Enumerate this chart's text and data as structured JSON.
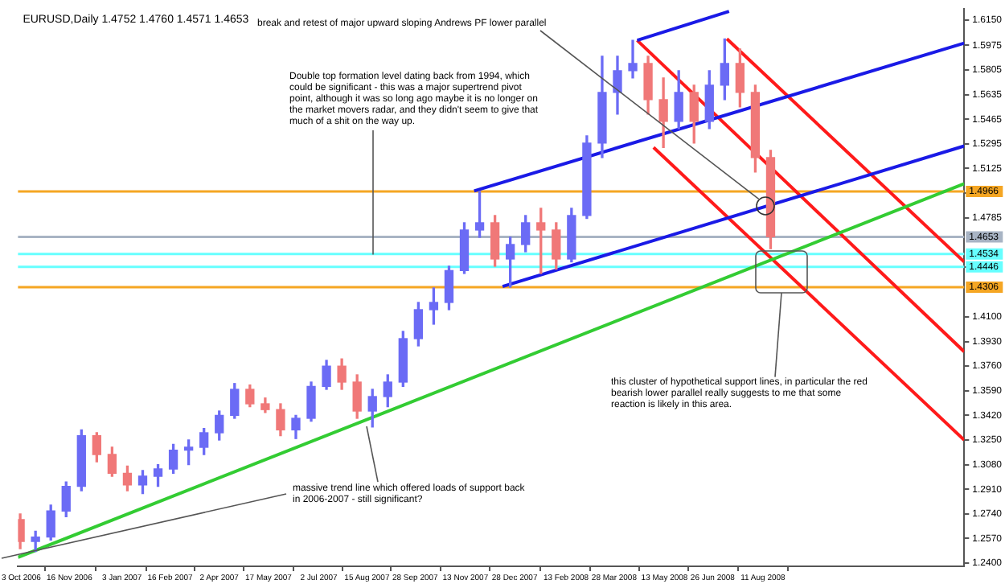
{
  "chart_data": {
    "type": "candlestick",
    "title": "EURUSD,Daily 1.4752 1.4760 1.4571 1.4653",
    "x": [
      "2006-10-02",
      "2006-10-16",
      "2006-10-30",
      "2006-11-13",
      "2006-11-27",
      "2006-12-11",
      "2006-12-25",
      "2007-01-08",
      "2007-01-22",
      "2007-02-05",
      "2007-02-19",
      "2007-03-05",
      "2007-03-19",
      "2007-04-02",
      "2007-04-16",
      "2007-04-30",
      "2007-05-14",
      "2007-05-28",
      "2007-06-11",
      "2007-06-25",
      "2007-07-09",
      "2007-07-23",
      "2007-08-06",
      "2007-08-20",
      "2007-09-03",
      "2007-09-17",
      "2007-10-01",
      "2007-10-15",
      "2007-10-29",
      "2007-11-12",
      "2007-11-26",
      "2007-12-10",
      "2007-12-24",
      "2008-01-07",
      "2008-01-21",
      "2008-02-04",
      "2008-02-18",
      "2008-03-03",
      "2008-03-17",
      "2008-03-31",
      "2008-04-14",
      "2008-04-28",
      "2008-05-12",
      "2008-05-26",
      "2008-06-09",
      "2008-06-23",
      "2008-07-07",
      "2008-07-21",
      "2008-08-04",
      "2008-08-18"
    ],
    "ohlc": [
      [
        1.27,
        1.274,
        1.25,
        1.255
      ],
      [
        1.255,
        1.262,
        1.248,
        1.258
      ],
      [
        1.258,
        1.28,
        1.256,
        1.276
      ],
      [
        1.276,
        1.296,
        1.272,
        1.293
      ],
      [
        1.293,
        1.332,
        1.29,
        1.328
      ],
      [
        1.328,
        1.33,
        1.31,
        1.315
      ],
      [
        1.315,
        1.32,
        1.3,
        1.302
      ],
      [
        1.302,
        1.307,
        1.29,
        1.294
      ],
      [
        1.294,
        1.304,
        1.288,
        1.3
      ],
      [
        1.3,
        1.308,
        1.293,
        1.305
      ],
      [
        1.305,
        1.322,
        1.302,
        1.318
      ],
      [
        1.318,
        1.325,
        1.308,
        1.32
      ],
      [
        1.32,
        1.333,
        1.315,
        1.33
      ],
      [
        1.33,
        1.345,
        1.325,
        1.342
      ],
      [
        1.342,
        1.364,
        1.34,
        1.36
      ],
      [
        1.36,
        1.363,
        1.348,
        1.35
      ],
      [
        1.35,
        1.354,
        1.344,
        1.346
      ],
      [
        1.346,
        1.35,
        1.328,
        1.332
      ],
      [
        1.332,
        1.342,
        1.326,
        1.34
      ],
      [
        1.34,
        1.365,
        1.338,
        1.362
      ],
      [
        1.362,
        1.38,
        1.36,
        1.376
      ],
      [
        1.376,
        1.381,
        1.36,
        1.365
      ],
      [
        1.365,
        1.37,
        1.34,
        1.345
      ],
      [
        1.345,
        1.36,
        1.334,
        1.355
      ],
      [
        1.355,
        1.37,
        1.348,
        1.365
      ],
      [
        1.365,
        1.4,
        1.362,
        1.395
      ],
      [
        1.395,
        1.42,
        1.39,
        1.415
      ],
      [
        1.415,
        1.43,
        1.405,
        1.42
      ],
      [
        1.42,
        1.445,
        1.415,
        1.442
      ],
      [
        1.442,
        1.475,
        1.44,
        1.47
      ],
      [
        1.47,
        1.4966,
        1.465,
        1.475
      ],
      [
        1.475,
        1.48,
        1.445,
        1.45
      ],
      [
        1.45,
        1.465,
        1.4306,
        1.46
      ],
      [
        1.46,
        1.48,
        1.455,
        1.475
      ],
      [
        1.475,
        1.485,
        1.44,
        1.47
      ],
      [
        1.47,
        1.475,
        1.443,
        1.45
      ],
      [
        1.45,
        1.485,
        1.448,
        1.48
      ],
      [
        1.48,
        1.535,
        1.478,
        1.53
      ],
      [
        1.53,
        1.59,
        1.52,
        1.565
      ],
      [
        1.565,
        1.59,
        1.55,
        1.58
      ],
      [
        1.58,
        1.601,
        1.575,
        1.585
      ],
      [
        1.585,
        1.59,
        1.55,
        1.56
      ],
      [
        1.56,
        1.575,
        1.527,
        1.545
      ],
      [
        1.545,
        1.58,
        1.54,
        1.565
      ],
      [
        1.565,
        1.57,
        1.53,
        1.545
      ],
      [
        1.545,
        1.58,
        1.54,
        1.57
      ],
      [
        1.57,
        1.602,
        1.56,
        1.585
      ],
      [
        1.585,
        1.595,
        1.555,
        1.565
      ],
      [
        1.565,
        1.57,
        1.51,
        1.52
      ],
      [
        1.52,
        1.525,
        1.4571,
        1.4653
      ]
    ],
    "colors": [
      "#f07878",
      "#6b6bf5",
      "#6b6bf5",
      "#6b6bf5",
      "#6b6bf5",
      "#f07878",
      "#f07878",
      "#f07878",
      "#6b6bf5",
      "#6b6bf5",
      "#6b6bf5",
      "#6b6bf5",
      "#6b6bf5",
      "#6b6bf5",
      "#6b6bf5",
      "#f07878",
      "#f07878",
      "#f07878",
      "#6b6bf5",
      "#6b6bf5",
      "#6b6bf5",
      "#f07878",
      "#f07878",
      "#6b6bf5",
      "#6b6bf5",
      "#6b6bf5",
      "#6b6bf5",
      "#6b6bf5",
      "#6b6bf5",
      "#6b6bf5",
      "#6b6bf5",
      "#f07878",
      "#6b6bf5",
      "#6b6bf5",
      "#f07878",
      "#f07878",
      "#6b6bf5",
      "#6b6bf5",
      "#6b6bf5",
      "#6b6bf5",
      "#6b6bf5",
      "#f07878",
      "#f07878",
      "#6b6bf5",
      "#f07878",
      "#6b6bf5",
      "#6b6bf5",
      "#f07878",
      "#f07878",
      "#f07878"
    ],
    "xlim": [
      "2006-09-30",
      "2009-02-11"
    ],
    "xticks": [
      {
        "value": "2006-10-03",
        "label": "3 Oct 2006"
      },
      {
        "value": "2006-11-16",
        "label": "16 Nov 2006"
      },
      {
        "value": "2007-01-03",
        "label": "3 Jan 2007"
      },
      {
        "value": "2007-02-16",
        "label": "16 Feb 2007"
      },
      {
        "value": "2007-04-02",
        "label": "2 Apr 2007"
      },
      {
        "value": "2007-05-17",
        "label": "17 May 2007"
      },
      {
        "value": "2007-07-02",
        "label": "2 Jul 2007"
      },
      {
        "value": "2007-08-15",
        "label": "15 Aug 2007"
      },
      {
        "value": "2007-09-28",
        "label": "28 Sep 2007"
      },
      {
        "value": "2007-11-13",
        "label": "13 Nov 2007"
      },
      {
        "value": "2007-12-28",
        "label": "28 Dec 2007"
      },
      {
        "value": "2008-02-13",
        "label": "13 Feb 2008"
      },
      {
        "value": "2008-03-28",
        "label": "28 Mar 2008"
      },
      {
        "value": "2008-05-13",
        "label": "13 May 2008"
      },
      {
        "value": "2008-06-26",
        "label": "26 Jun 2008"
      },
      {
        "value": "2008-08-11",
        "label": "11 Aug 2008"
      }
    ],
    "ylim": [
      1.2378,
      1.6226
    ],
    "yticks": [
      {
        "value": 1.615,
        "label": "1.6150"
      },
      {
        "value": 1.5975,
        "label": "1.5975"
      },
      {
        "value": 1.5805,
        "label": "1.5805"
      },
      {
        "value": 1.5635,
        "label": "1.5635"
      },
      {
        "value": 1.5465,
        "label": "1.5465"
      },
      {
        "value": 1.5295,
        "label": "1.5295"
      },
      {
        "value": 1.5125,
        "label": "1.5125"
      },
      {
        "value": 1.4955,
        "label": null
      },
      {
        "value": 1.4785,
        "label": "1.4785"
      },
      {
        "value": 1.4445,
        "label": null
      },
      {
        "value": 1.41,
        "label": "1.4100"
      },
      {
        "value": 1.393,
        "label": "1.3930"
      },
      {
        "value": 1.376,
        "label": "1.3760"
      },
      {
        "value": 1.359,
        "label": "1.3590"
      },
      {
        "value": 1.342,
        "label": "1.3420"
      },
      {
        "value": 1.325,
        "label": "1.3250"
      },
      {
        "value": 1.308,
        "label": "1.3080"
      },
      {
        "value": 1.291,
        "label": "1.2910"
      },
      {
        "value": 1.274,
        "label": "1.2740"
      },
      {
        "value": 1.257,
        "label": "1.2570"
      },
      {
        "value": 1.24,
        "label": "1.2400"
      }
    ],
    "series": [
      {
        "type": "line",
        "color": "#33cc33",
        "x": [
          "2006-09-30",
          "2009-02-11"
        ],
        "values": [
          1.244,
          1.502
        ]
      },
      {
        "type": "line",
        "color": "#1a1ae6",
        "x": [
          "2007-11-21",
          "2009-02-11"
        ],
        "values": [
          1.497,
          1.599
        ]
      },
      {
        "type": "line",
        "color": "#1a1ae6",
        "x": [
          "2007-12-17",
          "2009-02-11"
        ],
        "values": [
          1.431,
          1.528
        ]
      },
      {
        "type": "line",
        "color": "#1a1ae6",
        "x": [
          "2008-04-18",
          "2008-07-11"
        ],
        "values": [
          1.601,
          1.621
        ]
      },
      {
        "type": "line",
        "color": "#ff1a1a",
        "x": [
          "2008-04-18",
          "2009-02-11"
        ],
        "values": [
          1.601,
          1.386
        ]
      },
      {
        "type": "line",
        "color": "#ff1a1a",
        "x": [
          "2008-05-03",
          "2009-02-11"
        ],
        "values": [
          1.527,
          1.325
        ]
      },
      {
        "type": "line",
        "color": "#ff1a1a",
        "x": [
          "2008-07-09",
          "2009-02-11"
        ],
        "values": [
          1.602,
          1.448
        ]
      }
    ],
    "ref_lines": [
      {
        "axis": "y",
        "value": 1.4966,
        "label": "1.4966",
        "color": "#f5a623"
      },
      {
        "axis": "y",
        "value": 1.4653,
        "label": "1.4653",
        "color": "#a8b4c4"
      },
      {
        "axis": "y",
        "value": 1.4534,
        "label": "1.4534",
        "color": "#66ffff"
      },
      {
        "axis": "y",
        "value": 1.4446,
        "label": "1.4446",
        "color": "#66ffff"
      },
      {
        "axis": "y",
        "value": 1.4306,
        "label": "1.4306",
        "color": "#f5a623"
      }
    ],
    "annotations": [
      {
        "text": "break and retest of major upward sloping Andrews PF lower parallel",
        "x": "2008-08-13",
        "y": 1.487
      },
      {
        "text": "Double top formation level dating back from 1994, which could be significant - this was a major supertrend pivot point, although it was so long ago maybe it is no longer on the market movers radar, and they didn't seem to give that much of a shit on the way up.",
        "x": "2007-08-21",
        "y": 1.453
      },
      {
        "text": "this cluster of hypothetical support lines, in particular the red bearish lower parallel really suggests to me that some reaction is likely in this area.",
        "x": "2008-08-28",
        "y": 1.427
      },
      {
        "text": "massive trend line which offered loads of support back in 2006-2007 - still significant?",
        "x": "2007-08-14",
        "y": 1.334
      }
    ]
  }
}
